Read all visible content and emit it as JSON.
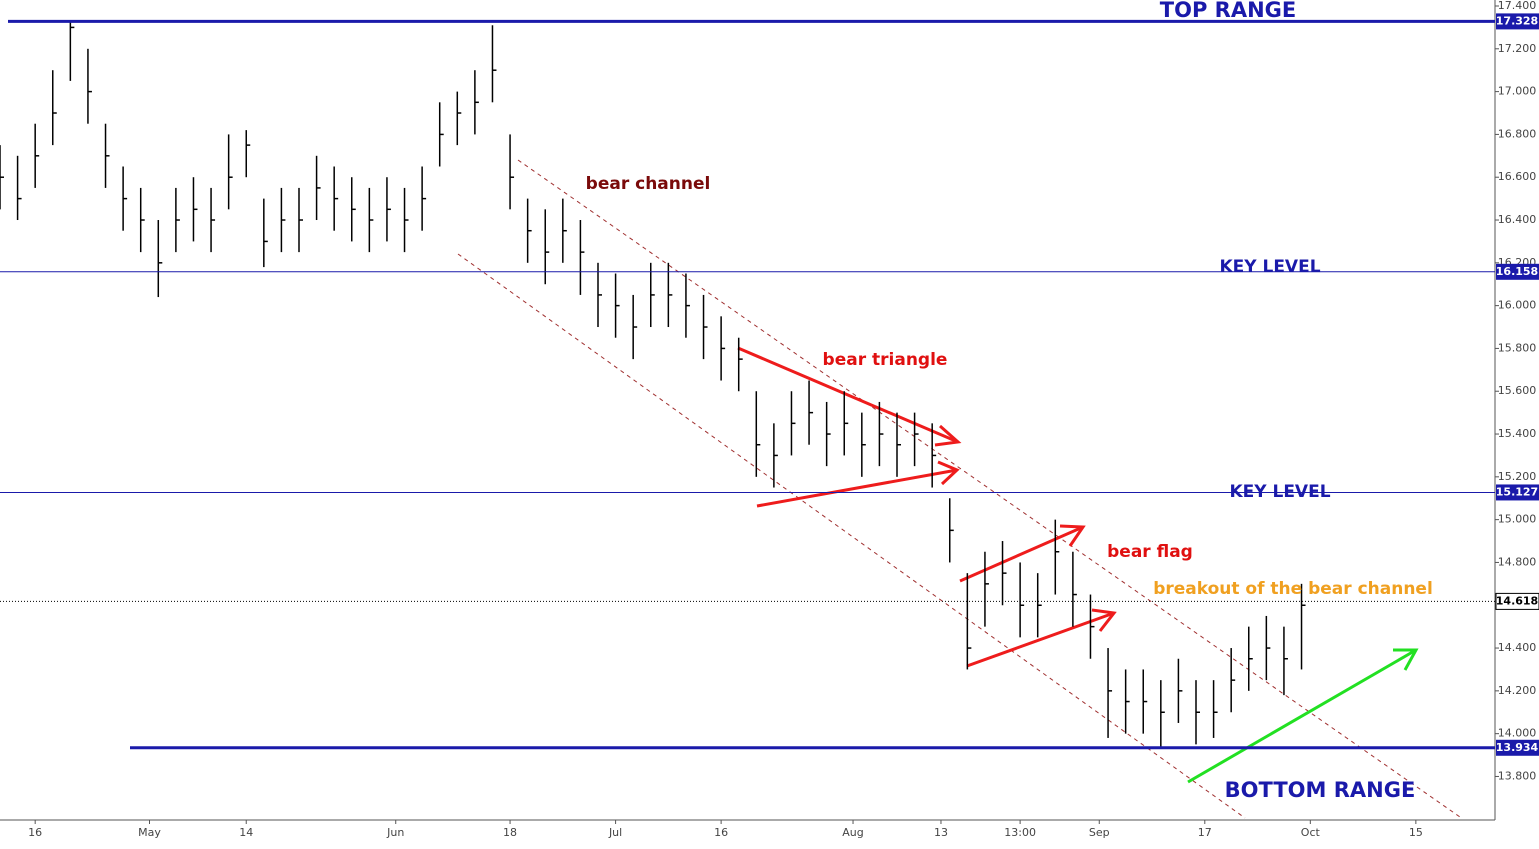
{
  "chart_data": {
    "type": "ohlc",
    "x": [
      0,
      2,
      4,
      6,
      8,
      10,
      12,
      14,
      16,
      18,
      20,
      22,
      24,
      26,
      28,
      30,
      32,
      34,
      36,
      38,
      40,
      42,
      44,
      46,
      48,
      50,
      52,
      54,
      56,
      58,
      60,
      62,
      64,
      66,
      68,
      70,
      72,
      74,
      76,
      78,
      80,
      82,
      84,
      86,
      88,
      90,
      92,
      94,
      96,
      98,
      100,
      102,
      104,
      106,
      108,
      110,
      112,
      114,
      116,
      118,
      120,
      122,
      124,
      126,
      128,
      130,
      132,
      134,
      136,
      138,
      140,
      142,
      144,
      146,
      148
    ],
    "high": [
      16.75,
      16.7,
      16.85,
      17.1,
      17.33,
      17.2,
      16.85,
      16.65,
      16.55,
      16.4,
      16.55,
      16.6,
      16.55,
      16.8,
      16.82,
      16.5,
      16.55,
      16.55,
      16.7,
      16.65,
      16.6,
      16.55,
      16.6,
      16.55,
      16.65,
      16.95,
      17.0,
      17.1,
      17.31,
      16.8,
      16.5,
      16.45,
      16.5,
      16.4,
      16.2,
      16.15,
      16.05,
      16.2,
      16.2,
      16.15,
      16.05,
      15.95,
      15.85,
      15.6,
      15.45,
      15.6,
      15.65,
      15.55,
      15.6,
      15.5,
      15.55,
      15.5,
      15.5,
      15.45,
      15.1,
      14.75,
      14.85,
      14.9,
      14.8,
      14.75,
      15.0,
      14.85,
      14.65,
      14.4,
      14.3,
      14.3,
      14.25,
      14.35,
      14.25,
      14.25,
      14.4,
      14.5,
      14.55,
      14.5,
      14.7
    ],
    "low": [
      16.45,
      16.4,
      16.55,
      16.75,
      17.05,
      16.85,
      16.55,
      16.35,
      16.25,
      16.04,
      16.25,
      16.3,
      16.25,
      16.45,
      16.6,
      16.18,
      16.25,
      16.25,
      16.4,
      16.35,
      16.3,
      16.25,
      16.3,
      16.25,
      16.35,
      16.65,
      16.75,
      16.8,
      16.95,
      16.45,
      16.2,
      16.1,
      16.2,
      16.05,
      15.9,
      15.85,
      15.75,
      15.9,
      15.9,
      15.85,
      15.75,
      15.65,
      15.6,
      15.2,
      15.15,
      15.3,
      15.35,
      15.25,
      15.3,
      15.2,
      15.25,
      15.2,
      15.25,
      15.15,
      14.8,
      14.3,
      14.5,
      14.6,
      14.45,
      14.45,
      14.65,
      14.5,
      14.35,
      13.98,
      14.0,
      14.0,
      13.93,
      14.05,
      13.95,
      13.98,
      14.1,
      14.2,
      14.25,
      14.18,
      14.3
    ],
    "close": [
      16.6,
      16.5,
      16.7,
      16.9,
      17.3,
      17.0,
      16.7,
      16.5,
      16.4,
      16.2,
      16.4,
      16.45,
      16.4,
      16.6,
      16.75,
      16.3,
      16.4,
      16.4,
      16.55,
      16.5,
      16.45,
      16.4,
      16.45,
      16.4,
      16.5,
      16.8,
      16.9,
      16.95,
      17.1,
      16.6,
      16.35,
      16.25,
      16.35,
      16.25,
      16.05,
      16.0,
      15.9,
      16.05,
      16.05,
      16.0,
      15.9,
      15.8,
      15.75,
      15.35,
      15.3,
      15.45,
      15.5,
      15.4,
      15.45,
      15.35,
      15.4,
      15.35,
      15.4,
      15.3,
      14.95,
      14.4,
      14.7,
      14.75,
      14.6,
      14.6,
      14.85,
      14.65,
      14.5,
      14.2,
      14.15,
      14.15,
      14.1,
      14.2,
      14.1,
      14.1,
      14.25,
      14.35,
      14.4,
      14.35,
      14.6
    ],
    "color": "#000000",
    "xlim": [
      0,
      170
    ],
    "xticks": [
      {
        "value": 4,
        "label": "16"
      },
      {
        "value": 17,
        "label": "May"
      },
      {
        "value": 28,
        "label": "14"
      },
      {
        "value": 45,
        "label": "Jun"
      },
      {
        "value": 58,
        "label": "18"
      },
      {
        "value": 70,
        "label": "Jul"
      },
      {
        "value": 82,
        "label": "16"
      },
      {
        "value": 97,
        "label": "Aug"
      },
      {
        "value": 107,
        "label": "13"
      },
      {
        "value": 116,
        "label": "13:00"
      },
      {
        "value": 125,
        "label": "Sep"
      },
      {
        "value": 137,
        "label": "17"
      },
      {
        "value": 149,
        "label": "Oct"
      },
      {
        "value": 161,
        "label": "15"
      }
    ],
    "ylim": [
      13.7,
      17.4
    ],
    "yticks": [
      {
        "value": 13.8,
        "label": "13.800"
      },
      {
        "value": 14.0,
        "label": "14.000"
      },
      {
        "value": 14.2,
        "label": "14.200"
      },
      {
        "value": 14.4,
        "label": "14.400"
      },
      {
        "value": 14.6,
        "label": "14.600"
      },
      {
        "value": 14.8,
        "label": "14.800"
      },
      {
        "value": 15.0,
        "label": "15.000"
      },
      {
        "value": 15.2,
        "label": "15.200"
      },
      {
        "value": 15.4,
        "label": "15.400"
      },
      {
        "value": 15.6,
        "label": "15.600"
      },
      {
        "value": 15.8,
        "label": "15.800"
      },
      {
        "value": 16.0,
        "label": "16.000"
      },
      {
        "value": 16.2,
        "label": "16.200"
      },
      {
        "value": 16.4,
        "label": "16.400"
      },
      {
        "value": 16.6,
        "label": "16.600"
      },
      {
        "value": 16.8,
        "label": "16.800"
      },
      {
        "value": 17.0,
        "label": "17.000"
      },
      {
        "value": 17.2,
        "label": "17.200"
      },
      {
        "value": 17.4,
        "label": "17.400"
      }
    ],
    "levels": [
      {
        "name": "TOP RANGE",
        "value": 17.328,
        "color": "#1a1aaa"
      },
      {
        "name": "KEY LEVEL",
        "value": 16.158,
        "color": "#1a1aaa"
      },
      {
        "name": "KEY LEVEL",
        "value": 15.127,
        "color": "#1a1aaa"
      },
      {
        "name": "BOTTOM RANGE",
        "value": 13.934,
        "color": "#1a1aaa"
      }
    ],
    "last_price": {
      "value": 14.618,
      "color": "#000000"
    },
    "annotations": [
      {
        "text": "bear channel",
        "color": "#7a0a0a"
      },
      {
        "text": "bear triangle",
        "color": "#e01010"
      },
      {
        "text": "bear flag",
        "color": "#e01010"
      },
      {
        "text": "breakout of the bear channel",
        "color": "#f0a020"
      }
    ]
  }
}
